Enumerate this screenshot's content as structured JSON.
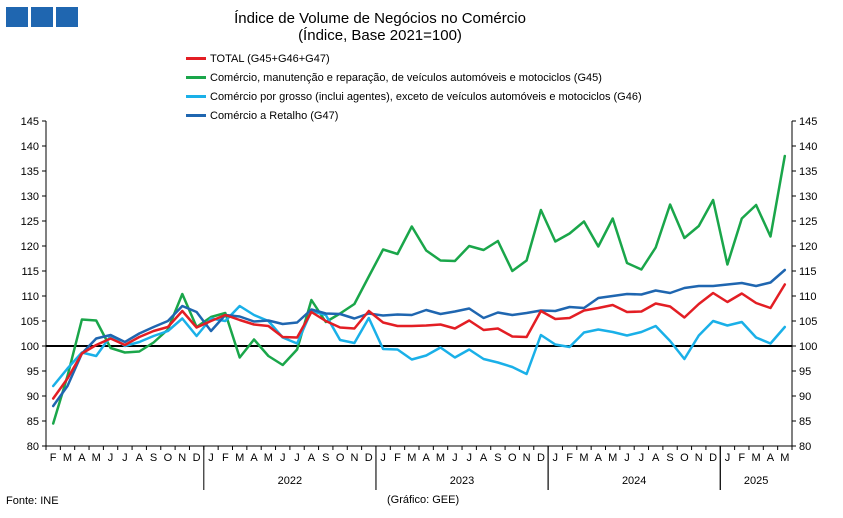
{
  "colors": {
    "total": "#e31e24",
    "g45": "#1aa64a",
    "g46": "#1ab0e8",
    "g47": "#1f66b0",
    "logo": "#1f66b0"
  },
  "header": {
    "title": "Índice de Volume de Negócios no Comércio",
    "subtitle": "(Índice, Base 2021=100)"
  },
  "footer": {
    "source": "Fonte: INE",
    "credit": "(Gráfico: GEE)"
  },
  "chart_data": {
    "type": "line",
    "x": [
      "F",
      "M",
      "A",
      "M",
      "J",
      "J",
      "A",
      "S",
      "O",
      "N",
      "D",
      "J",
      "F",
      "M",
      "A",
      "M",
      "J",
      "J",
      "A",
      "S",
      "O",
      "N",
      "D",
      "J",
      "F",
      "M",
      "A",
      "M",
      "J",
      "J",
      "A",
      "S",
      "O",
      "N",
      "D",
      "J",
      "F",
      "M",
      "A",
      "M",
      "J",
      "J",
      "A",
      "S",
      "O",
      "N",
      "D",
      "J",
      "F",
      "M",
      "A",
      "M"
    ],
    "year_labels": [
      {
        "label": "2022",
        "start": 11,
        "end": 22
      },
      {
        "label": "2023",
        "start": 23,
        "end": 34
      },
      {
        "label": "2024",
        "start": 35,
        "end": 46
      },
      {
        "label": "2025",
        "start": 47,
        "end": 51
      }
    ],
    "ylim": [
      80,
      145
    ],
    "yticks": [
      80,
      85,
      90,
      95,
      100,
      105,
      110,
      115,
      120,
      125,
      130,
      135,
      140,
      145
    ],
    "reference_line": 100,
    "grid": false,
    "legend_position": "top",
    "series": [
      {
        "name": "TOTAL (G45+G46+G47)",
        "color_key": "total",
        "values": [
          89.5,
          93.5,
          98.5,
          100.2,
          101.5,
          100.2,
          101.8,
          103.0,
          103.8,
          107.0,
          103.7,
          105.0,
          106.2,
          105.2,
          104.3,
          104.0,
          101.8,
          101.7,
          106.8,
          105.0,
          103.7,
          103.5,
          107.0,
          104.7,
          104.0,
          104.0,
          104.1,
          104.3,
          103.5,
          105.1,
          103.2,
          103.5,
          101.9,
          101.8,
          107.0,
          105.4,
          105.6,
          107.1,
          107.6,
          108.2,
          106.8,
          106.9,
          108.5,
          107.9,
          105.7,
          108.4,
          110.6,
          108.8,
          110.5,
          108.6,
          107.6,
          112.3
        ]
      },
      {
        "name": "Comércio, manutenção e reparação, de veículos automóveis e motociclos (G45)",
        "color_key": "g45",
        "values": [
          84.5,
          94.0,
          105.3,
          105.1,
          99.6,
          98.7,
          98.9,
          100.7,
          103.3,
          110.4,
          103.8,
          105.8,
          106.6,
          97.7,
          101.3,
          98.0,
          96.2,
          99.3,
          109.2,
          104.8,
          106.5,
          108.4,
          113.9,
          119.3,
          118.4,
          123.9,
          119.1,
          117.1,
          117.0,
          120.0,
          119.2,
          121.0,
          115.0,
          117.1,
          127.2,
          120.9,
          122.5,
          124.9,
          119.9,
          125.5,
          116.6,
          115.3,
          119.7,
          128.3,
          121.6,
          124.0,
          129.2,
          116.3,
          125.5,
          128.2,
          121.9,
          138.0
        ]
      },
      {
        "name": "Comércio por grosso (inclui agentes), exceto de veículos automóveis e motociclos (G46)",
        "color_key": "g46",
        "values": [
          92.0,
          95.5,
          98.7,
          98.0,
          102.0,
          100.0,
          100.8,
          102.0,
          103.0,
          105.5,
          102.0,
          105.5,
          105.0,
          108.0,
          106.2,
          105.0,
          101.7,
          100.5,
          107.0,
          106.2,
          101.2,
          100.6,
          105.6,
          99.4,
          99.3,
          97.3,
          98.1,
          99.7,
          97.7,
          99.3,
          97.4,
          96.7,
          95.8,
          94.4,
          102.2,
          100.3,
          99.8,
          102.7,
          103.3,
          102.8,
          102.1,
          102.8,
          104.0,
          101.0,
          97.4,
          102.1,
          105.0,
          104.1,
          104.8,
          101.7,
          100.5,
          103.8
        ]
      },
      {
        "name": "Comércio a Retalho (G47)",
        "color_key": "g47",
        "values": [
          88.0,
          92.0,
          98.5,
          101.5,
          102.2,
          100.8,
          102.5,
          103.8,
          105.0,
          108.0,
          106.8,
          103.0,
          106.2,
          105.9,
          104.9,
          105.1,
          104.4,
          104.7,
          107.3,
          106.5,
          106.4,
          105.5,
          106.5,
          106.1,
          106.3,
          106.2,
          107.2,
          106.4,
          106.9,
          107.5,
          105.6,
          106.7,
          106.2,
          106.6,
          107.1,
          107.0,
          107.8,
          107.6,
          109.6,
          110.0,
          110.4,
          110.3,
          111.1,
          110.6,
          111.6,
          112.0,
          112.0,
          112.3,
          112.6,
          112.0,
          112.7,
          115.2
        ]
      }
    ]
  }
}
